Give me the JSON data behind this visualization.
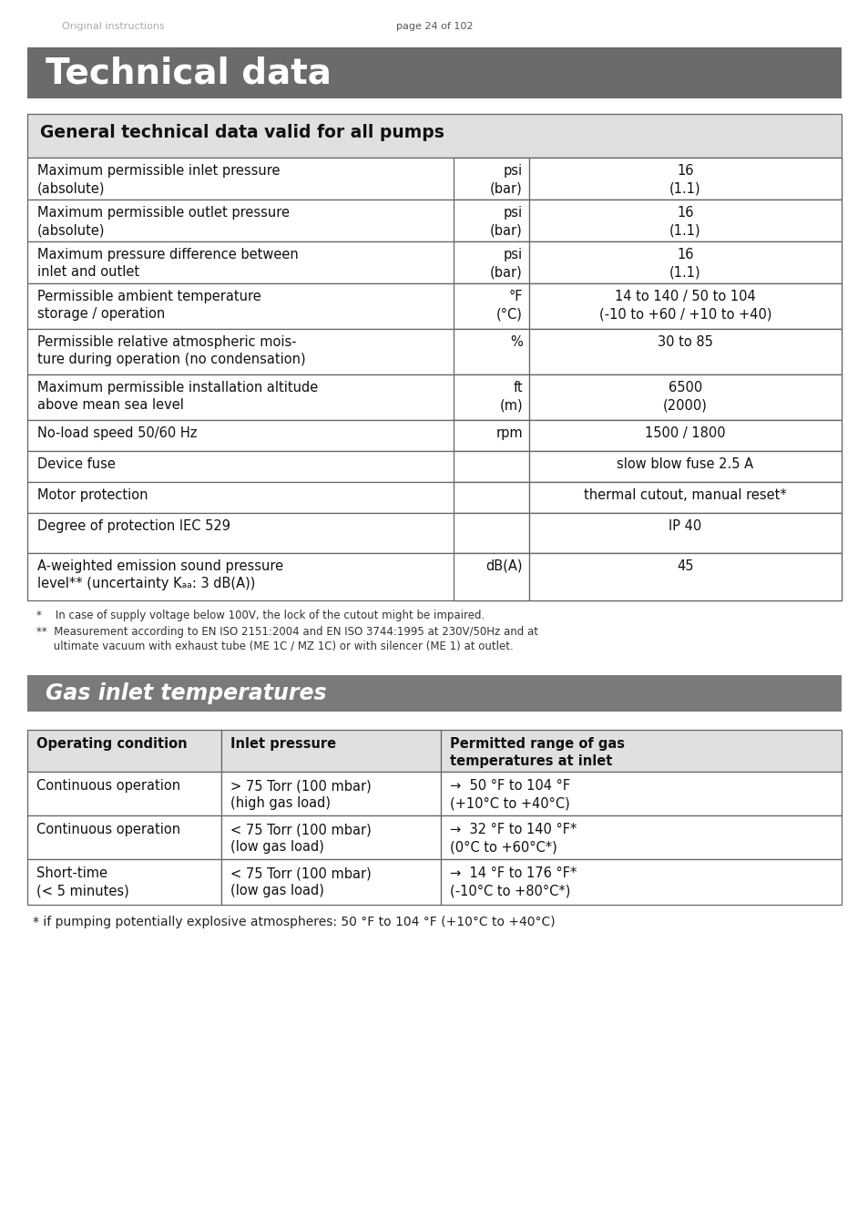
{
  "page_header_left": "Original instructions",
  "page_header_center": "page 24 of 102",
  "section_title": "Technical data",
  "section_title_bg": "#6b6b6b",
  "section_title_color": "#ffffff",
  "table1_header": "General technical data valid for all pumps",
  "table1_header_bg": "#e0e0e0",
  "table1_rows": [
    {
      "param": "Maximum permissible inlet pressure\n(absolute)",
      "unit": "psi\n(bar)",
      "value": "16\n(1.1)"
    },
    {
      "param": "Maximum permissible outlet pressure\n(absolute)",
      "unit": "psi\n(bar)",
      "value": "16\n(1.1)"
    },
    {
      "param": "Maximum pressure difference between\ninlet and outlet",
      "unit": "psi\n(bar)",
      "value": "16\n(1.1)"
    },
    {
      "param": "Permissible ambient temperature\nstorage / operation",
      "unit": "°F\n(°C)",
      "value": "14 to 140 / 50 to 104\n(-10 to +60 / +10 to +40)"
    },
    {
      "param": "Permissible relative atmospheric mois-\nture during operation (no condensation)",
      "unit": "%",
      "value": "30 to 85"
    },
    {
      "param": "Maximum permissible installation altitude\nabove mean sea level",
      "unit": "ft\n(m)",
      "value": "6500\n(2000)"
    },
    {
      "param": "No-load speed 50/60 Hz",
      "unit": "rpm",
      "value": "1500 / 1800"
    },
    {
      "param": "Device fuse",
      "unit": "",
      "value": "slow blow fuse 2.5 A"
    },
    {
      "param": "Motor protection",
      "unit": "",
      "value": "thermal cutout, manual reset*"
    },
    {
      "param": "Degree of protection IEC 529",
      "unit": "",
      "value": "IP 40"
    },
    {
      "param": "A-weighted emission sound pressure\nlevel** (uncertainty Kₐₐ: 3 dB(A))",
      "unit": "dB(A)",
      "value": "45"
    }
  ],
  "footnote1": "*    In case of supply voltage below 100V, the lock of the cutout might be impaired.",
  "footnote2_line1": "**  Measurement according to EN ISO 2151:2004 and EN ISO 3744:1995 at 230V/50Hz and at",
  "footnote2_line2": "     ultimate vacuum with exhaust tube (ME 1C / MZ 1C) or with silencer (ME 1) at outlet.",
  "section2_title": "Gas inlet temperatures",
  "section2_title_bg": "#7a7a7a",
  "section2_title_color": "#ffffff",
  "table2_headers": [
    "Operating condition",
    "Inlet pressure",
    "Permitted range of gas\ntemperatures at inlet"
  ],
  "table2_header_bg": "#e0e0e0",
  "table2_rows": [
    {
      "condition": "Continuous operation",
      "pressure": "> 75 Torr (100 mbar)\n(high gas load)",
      "temp": "→  50 °F to 104 °F\n(+10°C to +40°C)"
    },
    {
      "condition": "Continuous operation",
      "pressure": "< 75 Torr (100 mbar)\n(low gas load)",
      "temp": "→  32 °F to 140 °F*\n(0°C to +60°C*)"
    },
    {
      "condition": "Short-time\n(< 5 minutes)",
      "pressure": "< 75 Torr (100 mbar)\n(low gas load)",
      "temp": "→  14 °F to 176 °F*\n(-10°C to +80°C*)"
    }
  ],
  "table2_footnote": "* if pumping potentially explosive atmospheres: 50 °F to 104 °F (+10°C to +40°C)",
  "bg_color": "#ffffff"
}
